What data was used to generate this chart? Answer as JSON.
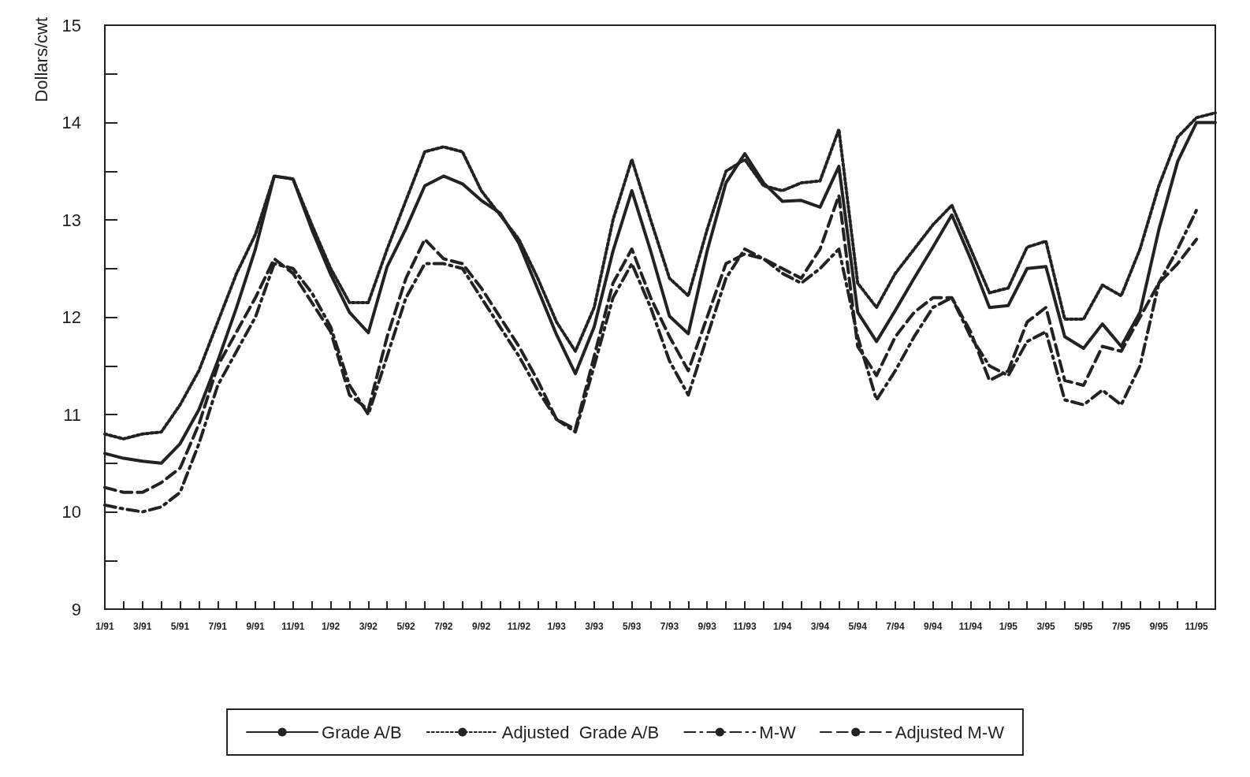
{
  "chart_data": {
    "type": "line",
    "ylabel": "Dollars/cwt",
    "categories": [
      "1/91",
      null,
      "3/91",
      null,
      "5/91",
      null,
      "7/91",
      null,
      "9/91",
      null,
      "11/91",
      null,
      "1/92",
      null,
      "3/92",
      null,
      "5/92",
      null,
      "7/92",
      null,
      "9/92",
      null,
      "11/92",
      null,
      "1/93",
      null,
      "3/93",
      null,
      "5/93",
      null,
      "7/93",
      null,
      "9/93",
      null,
      "11/93",
      null,
      "1/94",
      null,
      "3/94",
      null,
      "5/94",
      null,
      "7/94",
      null,
      "9/94",
      null,
      "11/94",
      null,
      "1/95",
      null,
      "3/95",
      null,
      "5/95",
      null,
      "7/95",
      null,
      "9/95",
      null,
      "11/95",
      null
    ],
    "series": [
      {
        "name": "Grade A/B",
        "color": "#222222",
        "line_style": "solid",
        "values": [
          10.6,
          10.55,
          10.52,
          10.5,
          10.7,
          11.05,
          11.55,
          12.1,
          12.7,
          13.45,
          13.42,
          12.9,
          12.44,
          12.05,
          11.84,
          12.52,
          12.91,
          13.35,
          13.45,
          13.37,
          13.2,
          13.07,
          12.76,
          12.29,
          11.82,
          11.42,
          11.9,
          12.68,
          13.3,
          12.68,
          12.01,
          11.83,
          12.68,
          13.38,
          13.68,
          13.38,
          13.19,
          13.2,
          13.13,
          13.55,
          12.05,
          11.75,
          12.07,
          12.4,
          12.72,
          13.05,
          12.6,
          12.1,
          12.12,
          12.5,
          12.52,
          11.8,
          11.68,
          11.93,
          11.7,
          12.05,
          12.9,
          13.6,
          14.0,
          14.0
        ]
      },
      {
        "name": "Adjusted  Grade A/B",
        "color": "#222222",
        "line_style": "dotted",
        "values": [
          10.8,
          10.75,
          10.8,
          10.82,
          11.1,
          11.45,
          11.95,
          12.45,
          12.85,
          13.45,
          13.42,
          12.95,
          12.5,
          12.15,
          12.15,
          12.7,
          13.2,
          13.7,
          13.75,
          13.7,
          13.3,
          13.05,
          12.8,
          12.4,
          11.95,
          11.65,
          12.1,
          13.0,
          13.62,
          13.0,
          12.4,
          12.22,
          12.9,
          13.5,
          13.62,
          13.35,
          13.3,
          13.38,
          13.4,
          13.93,
          12.35,
          12.1,
          12.45,
          12.7,
          12.95,
          13.15,
          12.7,
          12.25,
          12.3,
          12.72,
          12.78,
          11.98,
          11.98,
          12.33,
          12.22,
          12.7,
          13.35,
          13.85,
          14.05,
          14.1
        ]
      },
      {
        "name": "M-W",
        "color": "#222222",
        "line_style": "dashdot",
        "values": [
          10.07,
          10.03,
          10.0,
          10.05,
          10.2,
          10.7,
          11.3,
          11.65,
          12.0,
          12.55,
          12.5,
          12.25,
          11.9,
          11.3,
          11.0,
          11.6,
          12.2,
          12.55,
          12.55,
          12.5,
          12.2,
          11.9,
          11.6,
          11.25,
          10.95,
          10.82,
          11.5,
          12.2,
          12.55,
          12.1,
          11.55,
          11.2,
          11.8,
          12.4,
          12.7,
          12.6,
          12.45,
          12.35,
          12.5,
          12.7,
          11.8,
          11.15,
          11.45,
          11.8,
          12.1,
          12.2,
          11.8,
          11.5,
          11.4,
          11.75,
          11.85,
          11.15,
          11.1,
          11.25,
          11.1,
          11.5,
          12.35,
          12.7,
          13.1,
          null
        ]
      },
      {
        "name": "Adjusted M-W",
        "color": "#222222",
        "line_style": "dashed",
        "values": [
          10.25,
          10.2,
          10.2,
          10.3,
          10.45,
          10.9,
          11.5,
          11.85,
          12.2,
          12.6,
          12.45,
          12.15,
          11.85,
          11.2,
          11.05,
          11.8,
          12.4,
          12.8,
          12.6,
          12.55,
          12.3,
          12.0,
          11.7,
          11.35,
          10.95,
          10.85,
          11.6,
          12.35,
          12.7,
          12.2,
          11.8,
          11.45,
          12.0,
          12.55,
          12.65,
          12.6,
          12.5,
          12.4,
          12.7,
          13.25,
          11.7,
          11.4,
          11.8,
          12.05,
          12.2,
          12.2,
          11.85,
          11.35,
          11.45,
          11.95,
          12.1,
          11.35,
          11.3,
          11.7,
          11.65,
          12.0,
          12.35,
          12.55,
          12.8,
          null
        ]
      }
    ],
    "ylim": [
      9,
      15
    ],
    "yticks": [
      9,
      {
        "value": 9.5,
        "label": null
      },
      10,
      {
        "value": 10.5,
        "label": null
      },
      11,
      {
        "value": 11.5,
        "label": null
      },
      12,
      {
        "value": 12.5,
        "label": null
      },
      13,
      {
        "value": 13.5,
        "label": null
      },
      14,
      {
        "value": 14.5,
        "label": null
      },
      15
    ],
    "grid": false,
    "legend": "bottom",
    "marker": "none"
  }
}
